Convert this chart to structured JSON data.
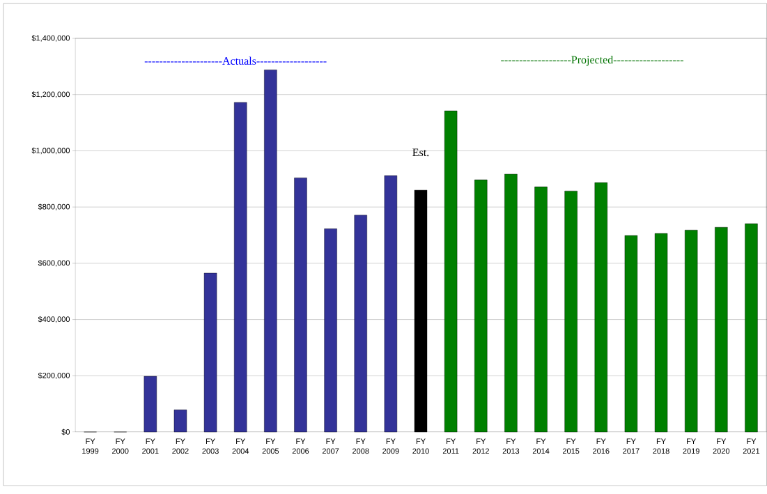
{
  "chart_data": {
    "type": "bar",
    "categories": [
      "FY 1999",
      "FY 2000",
      "FY 2001",
      "FY 2002",
      "FY 2003",
      "FY 2004",
      "FY 2005",
      "FY 2006",
      "FY 2007",
      "FY 2008",
      "FY 2009",
      "FY 2010",
      "FY 2011",
      "FY 2012",
      "FY 2013",
      "FY 2014",
      "FY 2015",
      "FY 2016",
      "FY 2017",
      "FY 2018",
      "FY 2019",
      "FY 2020",
      "FY 2021"
    ],
    "values": [
      0,
      0,
      198000,
      79000,
      565000,
      1172000,
      1288000,
      904000,
      723000,
      771000,
      912000,
      860000,
      1142000,
      897000,
      917000,
      872000,
      857000,
      887000,
      699000,
      706000,
      718000,
      728000,
      741000
    ],
    "colors": [
      "#333399",
      "#333399",
      "#333399",
      "#333399",
      "#333399",
      "#333399",
      "#333399",
      "#333399",
      "#333399",
      "#333399",
      "#333399",
      "#000000",
      "#008000",
      "#008000",
      "#008000",
      "#008000",
      "#008000",
      "#008000",
      "#008000",
      "#008000",
      "#008000",
      "#008000",
      "#008000"
    ],
    "ylim": [
      0,
      1400000
    ],
    "yticks": [
      {
        "value": 0,
        "label": "$0"
      },
      {
        "value": 200000,
        "label": "$200,000"
      },
      {
        "value": 400000,
        "label": "$400,000"
      },
      {
        "value": 600000,
        "label": "$600,000"
      },
      {
        "value": 800000,
        "label": "$800,000"
      },
      {
        "value": 1000000,
        "label": "$1,000,000"
      },
      {
        "value": 1200000,
        "label": "$1,200,000"
      },
      {
        "value": 1400000,
        "label": "$1,400,000"
      }
    ],
    "grid": "y",
    "annotations": [
      "---------------------Actuals-------------------",
      "-------------------Projected-------------------",
      "Est."
    ]
  }
}
